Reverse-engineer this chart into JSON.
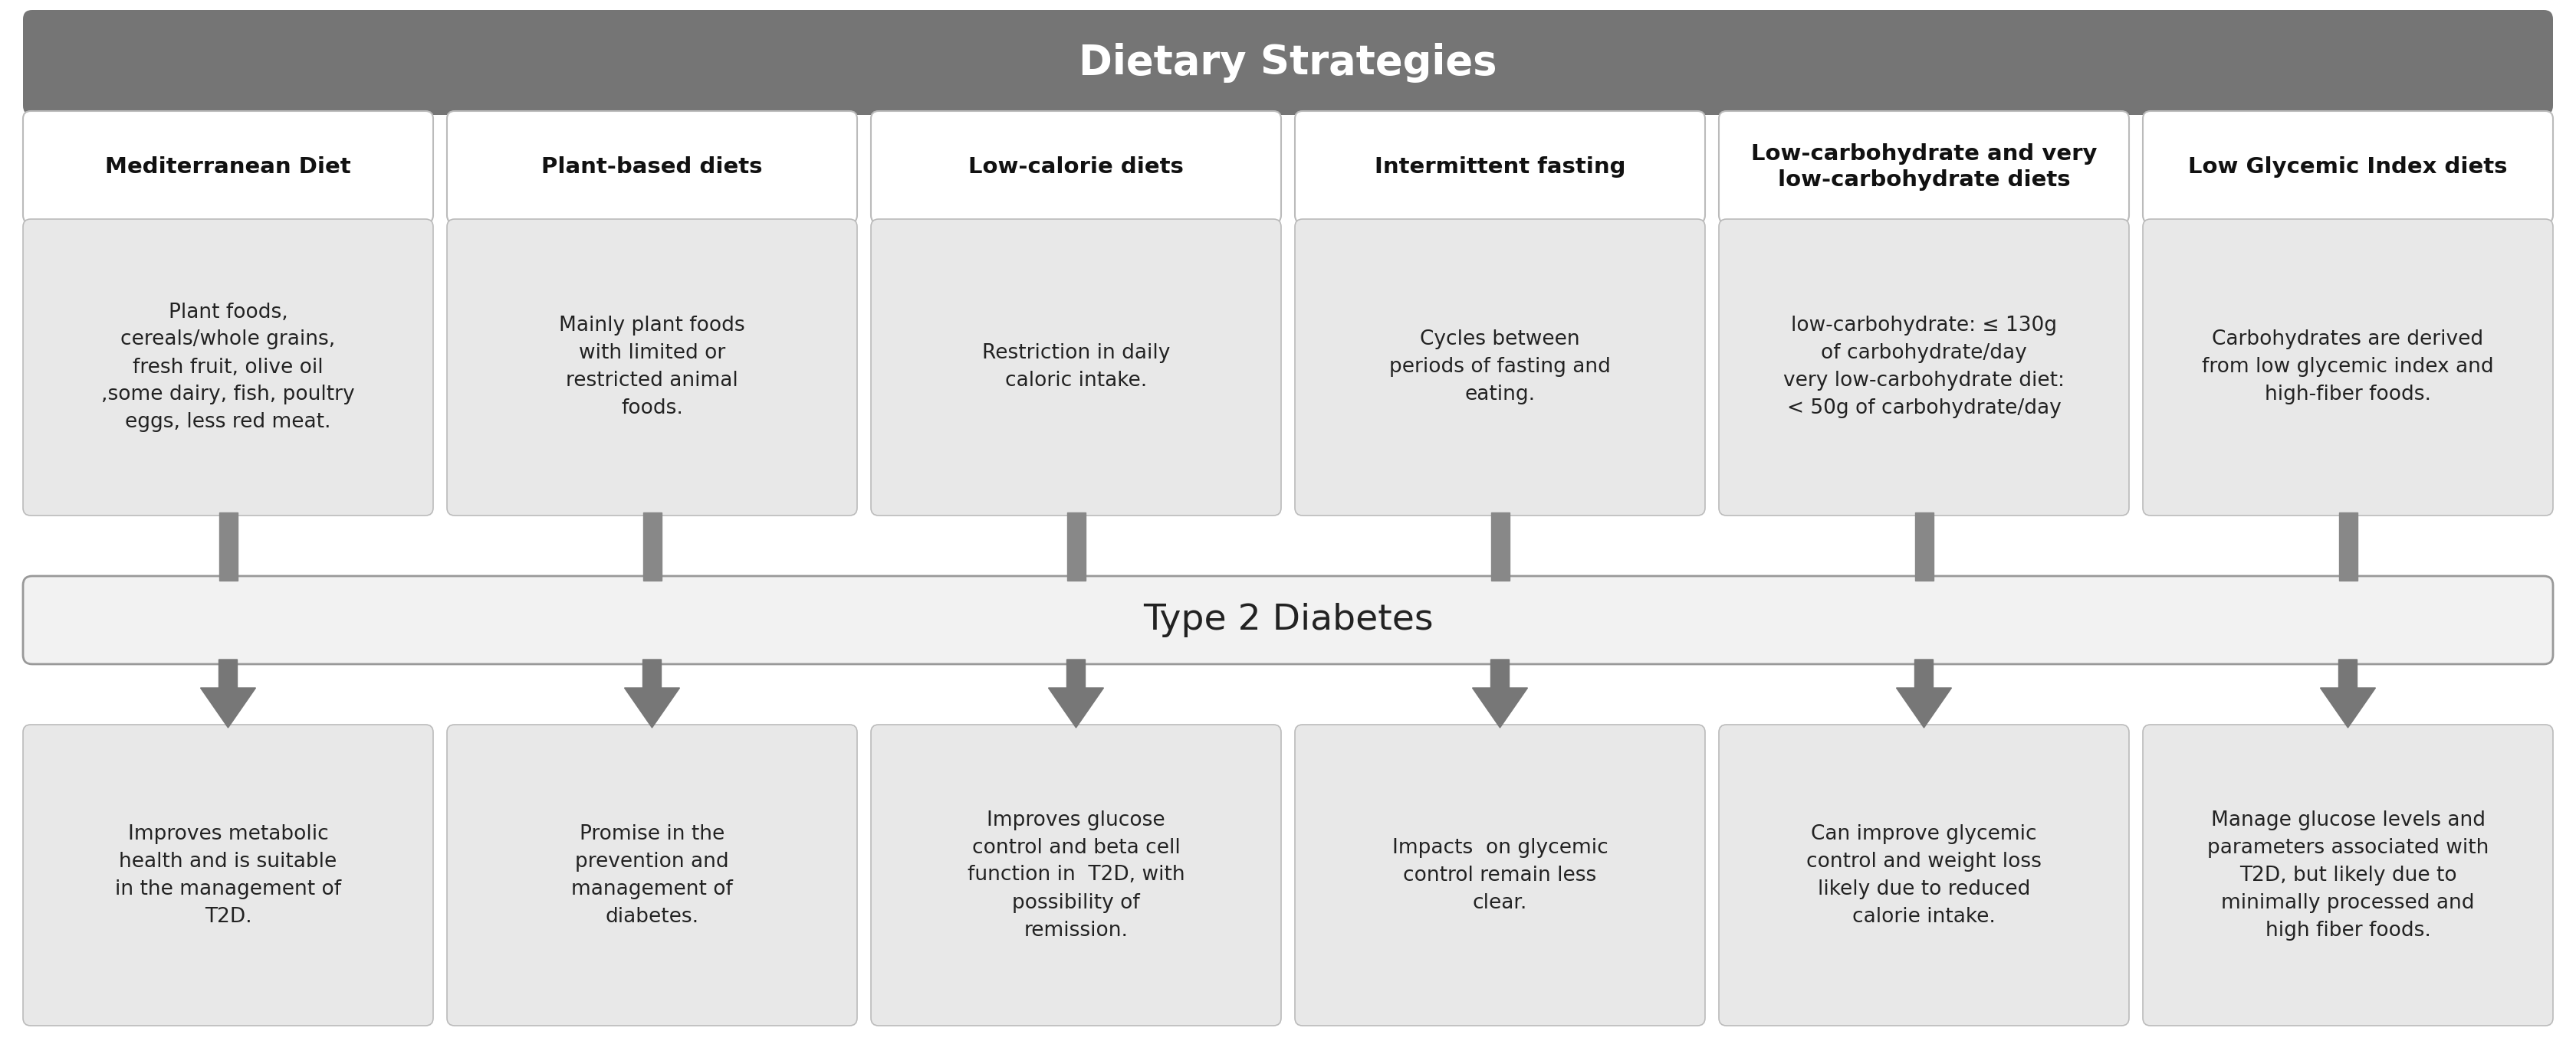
{
  "title": "Dietary Strategies",
  "title_bg": "#757575",
  "title_text_color": "#ffffff",
  "middle_box_text": "Type 2 Diabetes",
  "middle_box_bg": "#f2f2f2",
  "middle_box_border": "#999999",
  "column_header_bg": "#ffffff",
  "column_header_border": "#bbbbbb",
  "content_box_bg": "#e8e8e8",
  "content_box_border": "#bbbbbb",
  "arrow_color_top": "#888888",
  "arrow_color_bottom": "#777777",
  "bg_color": "#ffffff",
  "columns": [
    {
      "header": "Mediterranean Diet",
      "top_text": "Plant foods,\ncereals/whole grains,\nfresh fruit, olive oil\n,some dairy, fish, poultry\neggs, less red meat.",
      "bottom_text": "Improves metabolic\nhealth and is suitable\nin the management of\nT2D."
    },
    {
      "header": "Plant-based diets",
      "top_text": "Mainly plant foods\nwith limited or\nrestricted animal\nfoods.",
      "bottom_text": "Promise in the\nprevention and\nmanagement of\ndiabetes."
    },
    {
      "header": "Low-calorie diets",
      "top_text": "Restriction in daily\ncaloric intake.",
      "bottom_text": "Improves glucose\ncontrol and beta cell\nfunction in  T2D, with\npossibility of\nremission."
    },
    {
      "header": "Intermittent fasting",
      "top_text": "Cycles between\nperiods of fasting and\neating.",
      "bottom_text": "Impacts  on glycemic\ncontrol remain less\nclear."
    },
    {
      "header": "Low-carbohydrate and very\nlow-carbohydrate diets",
      "top_text": "low-carbohydrate: ≤ 130g\nof carbohydrate/day\nvery low-carbohydrate diet:\n< 50g of carbohydrate/day",
      "bottom_text": "Can improve glycemic\ncontrol and weight loss\nlikely due to reduced\ncalorie intake."
    },
    {
      "header": "Low Glycemic Index diets",
      "top_text": "Carbohydrates are derived\nfrom low glycemic index and\nhigh-fiber foods.",
      "bottom_text": "Manage glucose levels and\nparameters associated with\nT2D, but likely due to\nminimally processed and\nhigh fiber foods."
    }
  ]
}
